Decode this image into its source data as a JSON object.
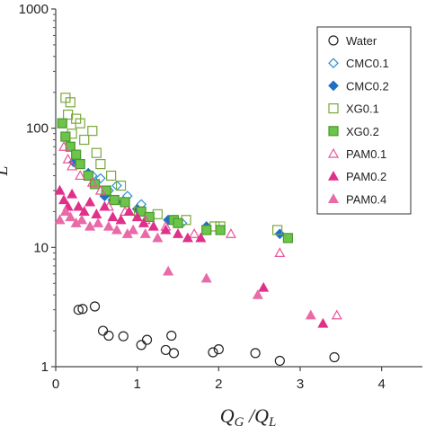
{
  "chart_data": {
    "type": "scatter",
    "xlabel": "Q_G / Q_L",
    "xlabel_parts": {
      "num": "Q",
      "num_sub": "G",
      "sep": " /",
      "den": "Q",
      "den_sub": "L"
    },
    "ylabel_fragment": "L",
    "xlim": [
      0,
      4.5
    ],
    "ylim": [
      1,
      1000
    ],
    "yscale": "log",
    "x_ticks": [
      "0",
      "1",
      "2",
      "3",
      "4"
    ],
    "y_ticks": [
      "1",
      "10",
      "100",
      "1000"
    ],
    "legend_position": "top-right",
    "series": [
      {
        "name": "Water",
        "marker": "circle-open",
        "color": "#222222",
        "points": [
          [
            0.28,
            3.0
          ],
          [
            0.33,
            3.05
          ],
          [
            0.48,
            3.2
          ],
          [
            0.58,
            2.0
          ],
          [
            0.65,
            1.82
          ],
          [
            0.83,
            1.8
          ],
          [
            1.05,
            1.52
          ],
          [
            1.12,
            1.68
          ],
          [
            1.35,
            1.38
          ],
          [
            1.42,
            1.82
          ],
          [
            1.45,
            1.3
          ],
          [
            1.93,
            1.32
          ],
          [
            2.0,
            1.4
          ],
          [
            2.45,
            1.3
          ],
          [
            2.75,
            1.12
          ],
          [
            3.42,
            1.2
          ]
        ]
      },
      {
        "name": "CMC0.1",
        "marker": "diamond-open",
        "color": "#2a8fd6",
        "points": [
          [
            0.25,
            58
          ],
          [
            0.45,
            40
          ],
          [
            0.55,
            38
          ],
          [
            0.65,
            30
          ],
          [
            0.75,
            33
          ],
          [
            0.88,
            27
          ],
          [
            1.05,
            23
          ],
          [
            1.45,
            17
          ],
          [
            1.55,
            16
          ]
        ]
      },
      {
        "name": "CMC0.2",
        "marker": "diamond-filled",
        "color": "#1f6fc4",
        "points": [
          [
            0.22,
            52
          ],
          [
            0.4,
            42
          ],
          [
            0.6,
            27
          ],
          [
            0.7,
            25
          ],
          [
            0.82,
            24
          ],
          [
            1.0,
            21
          ],
          [
            1.38,
            17
          ],
          [
            1.85,
            15
          ],
          [
            2.75,
            13
          ]
        ]
      },
      {
        "name": "XG0.1",
        "marker": "square-open",
        "color": "#7aa83a",
        "points": [
          [
            0.12,
            180
          ],
          [
            0.18,
            165
          ],
          [
            0.15,
            130
          ],
          [
            0.25,
            120
          ],
          [
            0.3,
            110
          ],
          [
            0.45,
            95
          ],
          [
            0.2,
            90
          ],
          [
            0.35,
            80
          ],
          [
            0.5,
            62
          ],
          [
            0.55,
            50
          ],
          [
            0.68,
            40
          ],
          [
            0.8,
            33
          ],
          [
            1.02,
            20
          ],
          [
            1.25,
            19
          ],
          [
            1.6,
            17
          ],
          [
            1.95,
            15
          ],
          [
            2.02,
            15
          ],
          [
            2.72,
            14
          ]
        ]
      },
      {
        "name": "XG0.2",
        "marker": "square-filled",
        "color": "#6dc44a",
        "points": [
          [
            0.08,
            110
          ],
          [
            0.12,
            85
          ],
          [
            0.18,
            70
          ],
          [
            0.25,
            60
          ],
          [
            0.3,
            50
          ],
          [
            0.4,
            40
          ],
          [
            0.48,
            34
          ],
          [
            0.62,
            30
          ],
          [
            0.72,
            25
          ],
          [
            0.85,
            24
          ],
          [
            1.05,
            20
          ],
          [
            1.15,
            18
          ],
          [
            1.45,
            17
          ],
          [
            1.5,
            16
          ],
          [
            1.85,
            14
          ],
          [
            2.02,
            14
          ],
          [
            2.85,
            12
          ]
        ]
      },
      {
        "name": "PAM0.1",
        "marker": "triangle-open",
        "color": "#e8559a",
        "points": [
          [
            0.1,
            70
          ],
          [
            0.15,
            55
          ],
          [
            0.2,
            48
          ],
          [
            0.3,
            40
          ],
          [
            0.45,
            35
          ],
          [
            0.55,
            30
          ],
          [
            0.65,
            22
          ],
          [
            0.85,
            20
          ],
          [
            1.1,
            17
          ],
          [
            1.35,
            15
          ],
          [
            1.7,
            13
          ],
          [
            2.15,
            13
          ],
          [
            2.75,
            9
          ],
          [
            3.45,
            2.7
          ]
        ]
      },
      {
        "name": "PAM0.2",
        "marker": "triangle-filled",
        "color": "#e0308a",
        "points": [
          [
            0.05,
            30
          ],
          [
            0.1,
            25
          ],
          [
            0.15,
            22
          ],
          [
            0.2,
            28
          ],
          [
            0.28,
            22
          ],
          [
            0.35,
            20
          ],
          [
            0.42,
            24
          ],
          [
            0.5,
            19
          ],
          [
            0.6,
            22
          ],
          [
            0.7,
            18
          ],
          [
            0.8,
            17
          ],
          [
            0.9,
            20
          ],
          [
            1.0,
            18
          ],
          [
            1.08,
            16
          ],
          [
            1.2,
            15
          ],
          [
            1.35,
            14
          ],
          [
            1.5,
            13
          ],
          [
            1.62,
            12
          ],
          [
            1.78,
            12
          ],
          [
            2.55,
            4.6
          ],
          [
            3.28,
            2.3
          ]
        ]
      },
      {
        "name": "PAM0.4",
        "marker": "triangle-filled",
        "color": "#ea6aa8",
        "points": [
          [
            0.05,
            17
          ],
          [
            0.12,
            20
          ],
          [
            0.18,
            18
          ],
          [
            0.25,
            16
          ],
          [
            0.32,
            17
          ],
          [
            0.42,
            15
          ],
          [
            0.52,
            16
          ],
          [
            0.65,
            15
          ],
          [
            0.75,
            14
          ],
          [
            0.88,
            13
          ],
          [
            0.95,
            14
          ],
          [
            1.1,
            13
          ],
          [
            1.25,
            12
          ],
          [
            1.38,
            6.3
          ],
          [
            1.85,
            5.5
          ],
          [
            2.48,
            4.0
          ],
          [
            3.13,
            2.7
          ]
        ]
      }
    ]
  }
}
